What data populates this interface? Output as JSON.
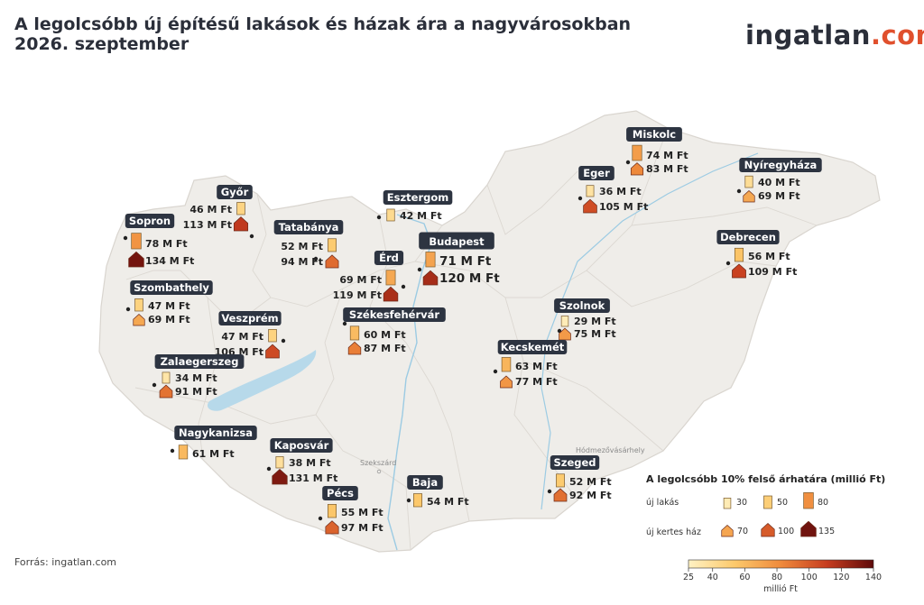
{
  "title_line1": "A legolcsóbb új építésű lakások és házak ára a nagyvárosokban",
  "title_line2": "2026. szeptember",
  "logo_main": "ingatlan",
  "logo_accent": ".com",
  "source": "Forrás: ingatlan.com",
  "colors": {
    "land": "#efede9",
    "border": "#d9d5cf",
    "water": "#b7d9ea",
    "label_bg": "#2d3441"
  },
  "places": [
    "Hódmezővásárhely",
    "Szekszárd"
  ],
  "cities": [
    {
      "name": "Miskolc",
      "flat_label": "74 M Ft",
      "house_label": "83 M Ft",
      "flat": 74,
      "house": 83
    },
    {
      "name": "Eger",
      "flat_label": "36 M Ft",
      "house_label": "105 M Ft",
      "flat": 36,
      "house": 105
    },
    {
      "name": "Nyíregyháza",
      "flat_label": "40 M Ft",
      "house_label": "69 M Ft",
      "flat": 40,
      "house": 69
    },
    {
      "name": "Győr",
      "flat_label": "46 M Ft",
      "house_label": "113 M Ft",
      "flat": 46,
      "house": 113
    },
    {
      "name": "Esztergom",
      "flat_label": "42 M Ft",
      "house_label": "",
      "flat": 42,
      "house": null
    },
    {
      "name": "Sopron",
      "flat_label": "78 M Ft",
      "house_label": "134 M Ft",
      "flat": 78,
      "house": 134
    },
    {
      "name": "Tatabánya",
      "flat_label": "52 M Ft",
      "house_label": "94 M Ft",
      "flat": 52,
      "house": 94
    },
    {
      "name": "Budapest",
      "flat_label": "71 M Ft",
      "house_label": "120 M Ft",
      "flat": 71,
      "house": 120
    },
    {
      "name": "Érd",
      "flat_label": "69 M Ft",
      "house_label": "119 M Ft",
      "flat": 69,
      "house": 119
    },
    {
      "name": "Debrecen",
      "flat_label": "56 M Ft",
      "house_label": "109 M Ft",
      "flat": 56,
      "house": 109
    },
    {
      "name": "Szombathely",
      "flat_label": "47 M Ft",
      "house_label": "69 M Ft",
      "flat": 47,
      "house": 69
    },
    {
      "name": "Székesfehérvár",
      "flat_label": "60 M Ft",
      "house_label": "87 M Ft",
      "flat": 60,
      "house": 87
    },
    {
      "name": "Veszprém",
      "flat_label": "47 M Ft",
      "house_label": "106 M Ft",
      "flat": 47,
      "house": 106
    },
    {
      "name": "Szolnok",
      "flat_label": "29 M Ft",
      "house_label": "75 M Ft",
      "flat": 29,
      "house": 75
    },
    {
      "name": "Kecskemét",
      "flat_label": "63 M Ft",
      "house_label": "77 M Ft",
      "flat": 63,
      "house": 77
    },
    {
      "name": "Zalaegerszeg",
      "flat_label": "34 M Ft",
      "house_label": "91 M Ft",
      "flat": 34,
      "house": 91
    },
    {
      "name": "Nagykanizsa",
      "flat_label": "61 M Ft",
      "house_label": "",
      "flat": 61,
      "house": null
    },
    {
      "name": "Kaposvár",
      "flat_label": "38 M Ft",
      "house_label": "131 M Ft",
      "flat": 38,
      "house": 131
    },
    {
      "name": "Baja",
      "flat_label": "54 M Ft",
      "house_label": "",
      "flat": 54,
      "house": null
    },
    {
      "name": "Szeged",
      "flat_label": "52 M Ft",
      "house_label": "92 M Ft",
      "flat": 52,
      "house": 92
    },
    {
      "name": "Pécs",
      "flat_label": "55 M Ft",
      "house_label": "97 M Ft",
      "flat": 55,
      "house": 97
    }
  ],
  "legend": {
    "title": "A legolcsóbb 10% felső árhatára (millió Ft)",
    "flat_label": "új lakás",
    "house_label": "új kertes ház",
    "flat_sizes": [
      {
        "v": 30,
        "label": "30"
      },
      {
        "v": 50,
        "label": "50"
      },
      {
        "v": 80,
        "label": "80"
      }
    ],
    "house_sizes": [
      {
        "v": 70,
        "label": "70"
      },
      {
        "v": 100,
        "label": "100"
      },
      {
        "v": 135,
        "label": "135"
      }
    ],
    "colorbar_ticks": [
      {
        "v": 25,
        "label": "25"
      },
      {
        "v": 40,
        "label": "40"
      },
      {
        "v": 60,
        "label": "60"
      },
      {
        "v": 80,
        "label": "80"
      },
      {
        "v": 100,
        "label": "100"
      },
      {
        "v": 120,
        "label": "120"
      },
      {
        "v": 140,
        "label": "140"
      }
    ],
    "colorbar_range": [
      25,
      140
    ],
    "colorbar_unit": "millió Ft"
  }
}
